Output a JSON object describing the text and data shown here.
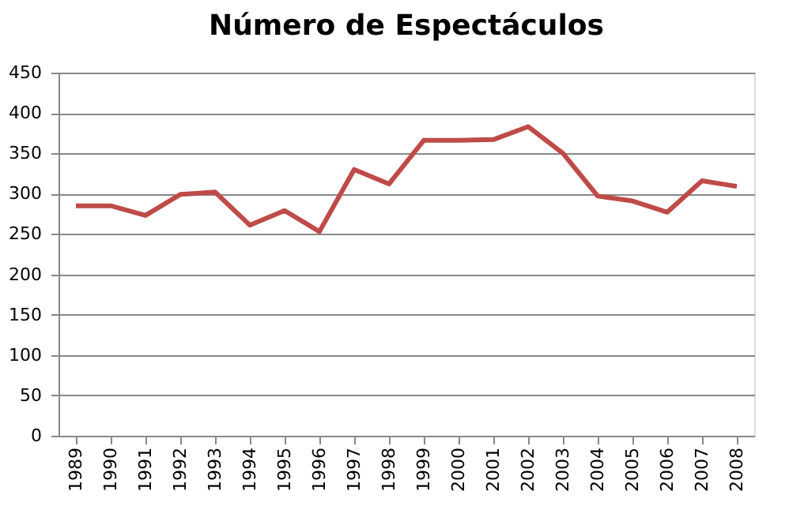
{
  "chart_data": {
    "type": "line",
    "title": "Número de Espectáculos",
    "categories": [
      "1989",
      "1990",
      "1991",
      "1992",
      "1993",
      "1994",
      "1995",
      "1996",
      "1997",
      "1998",
      "1999",
      "2000",
      "2001",
      "2002",
      "2003",
      "2004",
      "2005",
      "2006",
      "2007",
      "2008"
    ],
    "series": [
      {
        "color": "#be4b48",
        "values": [
          285,
          285,
          273,
          299,
          302,
          261,
          279,
          253,
          330,
          312,
          366,
          366,
          367,
          383,
          350,
          297,
          291,
          277,
          316,
          309
        ]
      }
    ],
    "ylim": [
      0,
      450
    ],
    "yticks": [
      0,
      50,
      100,
      150,
      200,
      250,
      300,
      350,
      400,
      450
    ],
    "grid": "y",
    "legend": false,
    "marker": "none",
    "line_style": "solid"
  }
}
